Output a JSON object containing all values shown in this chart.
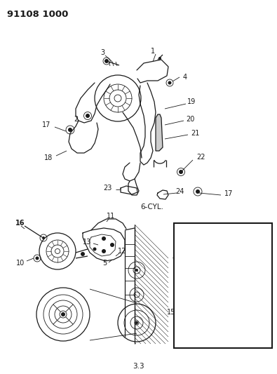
{
  "title": "91108 1000",
  "page_num": "3.3",
  "label_6cyl": "6-CYL.",
  "bg_color": "#ffffff",
  "title_fontsize": 10,
  "label_fontsize": 7,
  "fig_width": 3.95,
  "fig_height": 5.33,
  "dpi": 100
}
